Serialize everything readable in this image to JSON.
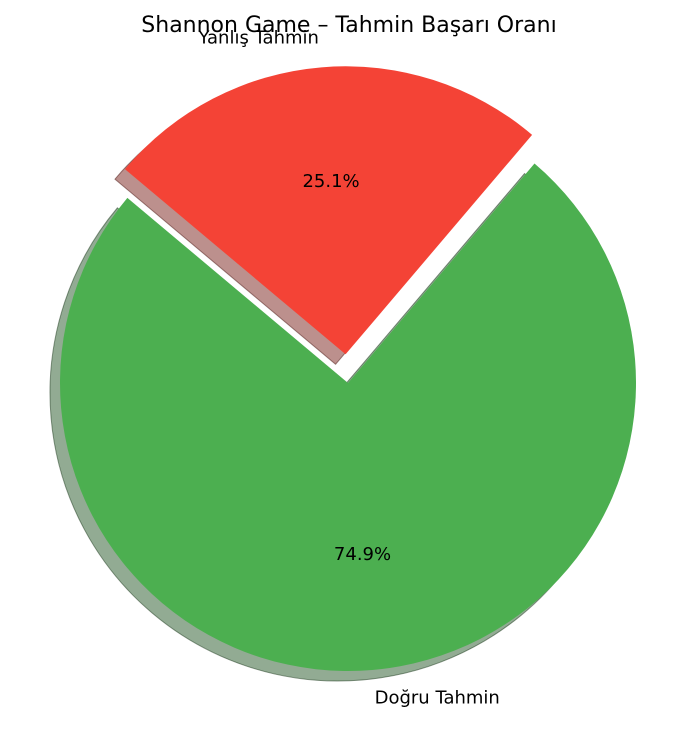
{
  "chart_data": {
    "type": "pie",
    "title": "Shannon Game – Tahmin Başarı Oranı",
    "slices": [
      {
        "label": "Doğru Tahmin",
        "value": 74.9,
        "pct_label": "74.9%",
        "color": "#4caf50",
        "explode": 0
      },
      {
        "label": "Yanlış Tahmin",
        "value": 25.1,
        "pct_label": "25.1%",
        "color": "#f44336",
        "explode": 0.1
      }
    ],
    "start_angle_deg": 140,
    "direction": "counterclockwise",
    "shadow": true,
    "legend": "none"
  }
}
